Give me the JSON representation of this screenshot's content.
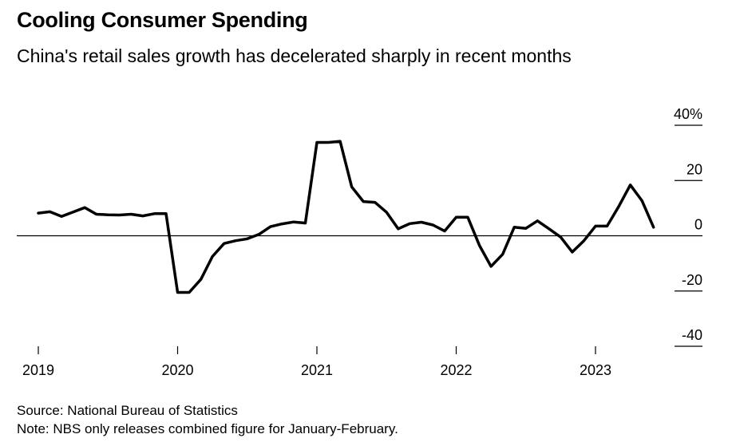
{
  "title": "Cooling Consumer Spending",
  "subtitle": "China's retail sales growth has decelerated sharply in recent months",
  "source": "Source: National Bureau of Statistics",
  "note": "Note: NBS only releases combined figure for January-February.",
  "chart_data": {
    "type": "line",
    "ylim": [
      -40,
      40
    ],
    "y_ticks": [
      40,
      20,
      0,
      -20,
      -40
    ],
    "y_tick_labels": [
      "40%",
      "20",
      "0",
      "-20",
      "-40"
    ],
    "y_axis_side": "right",
    "x_ticks": [
      "2019",
      "2020",
      "2021",
      "2022",
      "2023"
    ],
    "grid": false,
    "series": [
      {
        "color": "#000000",
        "x": [
          "2019-01",
          "2019-02",
          "2019-03",
          "2019-04",
          "2019-05",
          "2019-06",
          "2019-07",
          "2019-08",
          "2019-09",
          "2019-10",
          "2019-11",
          "2019-12",
          "2020-01",
          "2020-02",
          "2020-03",
          "2020-04",
          "2020-05",
          "2020-06",
          "2020-07",
          "2020-08",
          "2020-09",
          "2020-10",
          "2020-11",
          "2020-12",
          "2021-01",
          "2021-02",
          "2021-03",
          "2021-04",
          "2021-05",
          "2021-06",
          "2021-07",
          "2021-08",
          "2021-09",
          "2021-10",
          "2021-11",
          "2021-12",
          "2022-01",
          "2022-02",
          "2022-03",
          "2022-04",
          "2022-05",
          "2022-06",
          "2022-07",
          "2022-08",
          "2022-09",
          "2022-10",
          "2022-11",
          "2022-12",
          "2023-01",
          "2023-02",
          "2023-03",
          "2023-04",
          "2023-05",
          "2023-06"
        ],
        "values": [
          8.2,
          8.7,
          7.0,
          8.6,
          10.2,
          7.8,
          7.6,
          7.5,
          7.8,
          7.2,
          8.0,
          8.0,
          -20.5,
          -20.5,
          -15.8,
          -7.5,
          -2.8,
          -1.8,
          -1.1,
          0.5,
          3.3,
          4.3,
          5.0,
          4.6,
          33.8,
          33.8,
          34.2,
          17.7,
          12.4,
          12.1,
          8.5,
          2.5,
          4.4,
          4.9,
          3.9,
          1.7,
          6.7,
          6.7,
          -3.5,
          -11.1,
          -6.7,
          3.1,
          2.7,
          5.4,
          2.5,
          -0.5,
          -5.9,
          -1.8,
          3.5,
          3.5,
          10.6,
          18.4,
          12.7,
          3.1
        ]
      }
    ]
  }
}
